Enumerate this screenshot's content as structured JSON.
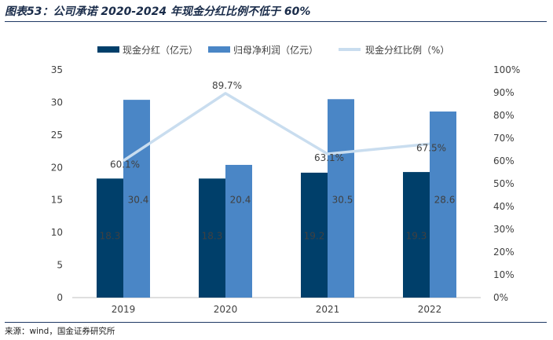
{
  "title": "图表53：公司承诺 2020-2024 年现金分红比例不低于 60%",
  "source": "来源：wind，国金证券研究所",
  "chart_data": {
    "type": "bar",
    "categories": [
      "2019",
      "2020",
      "2021",
      "2022"
    ],
    "series": [
      {
        "name": "现金分红（亿元）",
        "kind": "bar",
        "axis": "left",
        "color": "#003f6a",
        "values": [
          18.3,
          18.3,
          19.2,
          19.3
        ],
        "labels": [
          "18.3",
          "18.3",
          "19.2",
          "19.3"
        ]
      },
      {
        "name": "归母净利润（亿元）",
        "kind": "bar",
        "axis": "left",
        "color": "#4a86c6",
        "values": [
          30.4,
          20.4,
          30.5,
          28.6
        ],
        "labels": [
          "30.4",
          "20.4",
          "30.5",
          "28.6"
        ]
      },
      {
        "name": "现金分红比例（%）",
        "kind": "line",
        "axis": "right",
        "color": "#c9ddef",
        "values": [
          60.1,
          89.7,
          63.1,
          67.5
        ],
        "labels": [
          "60.1%",
          "89.7%",
          "63.1%",
          "67.5%"
        ]
      }
    ],
    "left_axis": {
      "ylim": [
        0,
        35
      ],
      "ticks": [
        "0",
        "5",
        "10",
        "15",
        "20",
        "25",
        "30",
        "35"
      ]
    },
    "right_axis": {
      "ylim": [
        0,
        100
      ],
      "ticks": [
        "0%",
        "10%",
        "20%",
        "30%",
        "40%",
        "50%",
        "60%",
        "70%",
        "80%",
        "90%",
        "100%"
      ]
    },
    "legend": "top",
    "grid": false
  }
}
